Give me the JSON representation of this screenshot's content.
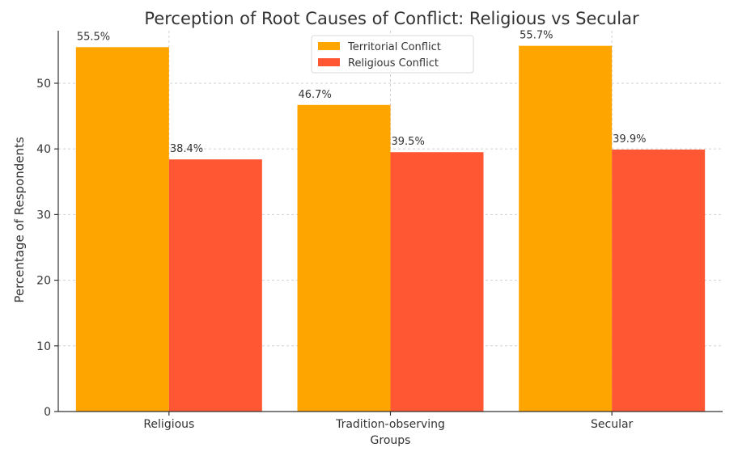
{
  "chart_data": {
    "type": "bar",
    "title": "Perception of Root Causes of Conflict: Religious vs Secular",
    "ylabel": "Percentage of Respondents",
    "xlabel": "",
    "ylim": [
      0,
      58
    ],
    "yticks": [
      0,
      10,
      20,
      30,
      40,
      50
    ],
    "categories": [
      "Religious",
      "Tradition-observing Groups",
      "Secular"
    ],
    "category_lines": [
      [
        "Religious"
      ],
      [
        "Tradition-observing",
        "Groups"
      ],
      [
        "Secular"
      ]
    ],
    "series": [
      {
        "name": "Territorial Conflict",
        "values": [
          55.5,
          46.7,
          55.7
        ],
        "labels": [
          "55.5%",
          "46.7%",
          "55.7%"
        ],
        "color": "#FFA500"
      },
      {
        "name": "Religious Conflict",
        "values": [
          38.4,
          39.5,
          39.9
        ],
        "labels": [
          "38.4%",
          "39.5%",
          "39.9%"
        ],
        "color": "#FF5733"
      }
    ],
    "grid": true,
    "legend": "top-center"
  }
}
